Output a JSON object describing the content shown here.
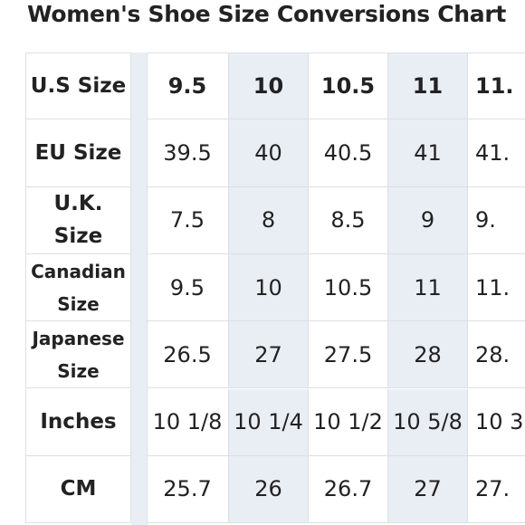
{
  "title": "Women's Shoe Size Conversions Chart",
  "table": {
    "rows": [
      {
        "label": "U.S Size",
        "cells": [
          "9.5",
          "10",
          "10.5",
          "11",
          "11."
        ]
      },
      {
        "label": "EU Size",
        "cells": [
          "39.5",
          "40",
          "40.5",
          "41",
          "41."
        ]
      },
      {
        "label": "U.K. Size",
        "cells": [
          "7.5",
          "8",
          "8.5",
          "9",
          "9."
        ]
      },
      {
        "label": "Canadian Size",
        "cells": [
          "9.5",
          "10",
          "10.5",
          "11",
          "11."
        ]
      },
      {
        "label": "Japanese Size",
        "cells": [
          "26.5",
          "27",
          "27.5",
          "28",
          "28."
        ]
      },
      {
        "label": "Inches",
        "cells": [
          "10 1/8",
          "10 1/4",
          "10 1/2",
          "10 5/8",
          "10 3"
        ]
      },
      {
        "label": "CM",
        "cells": [
          "25.7",
          "26",
          "26.7",
          "27",
          "27."
        ]
      }
    ]
  }
}
